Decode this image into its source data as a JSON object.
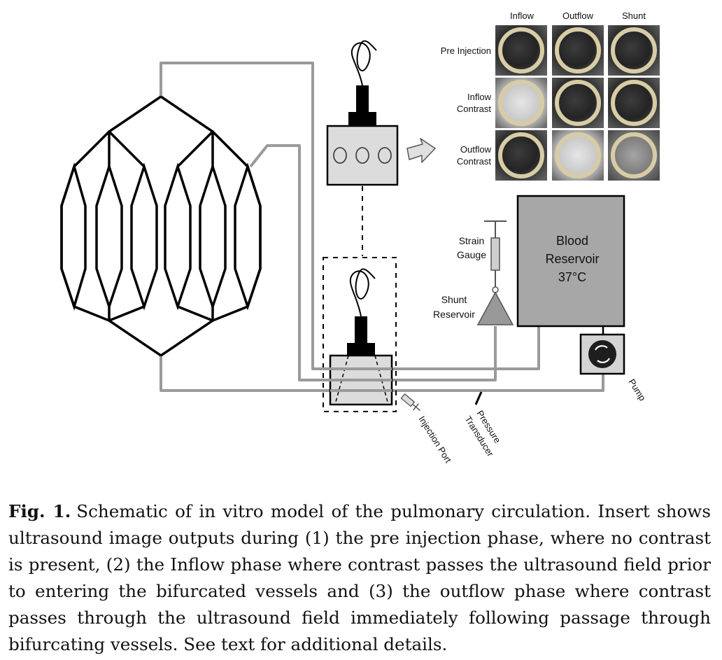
{
  "grid": {
    "columns": [
      "Inflow",
      "Outflow",
      "Shunt"
    ],
    "rows": [
      {
        "label_lines": [
          "Pre Injection"
        ],
        "cells": [
          "dark",
          "dark",
          "dark"
        ]
      },
      {
        "label_lines": [
          "Inflow",
          "Contrast"
        ],
        "cells": [
          "bright",
          "dark",
          "dark"
        ]
      },
      {
        "label_lines": [
          "Outflow",
          "Contrast"
        ],
        "cells": [
          "dark",
          "bright",
          "mid"
        ]
      }
    ]
  },
  "labels": {
    "strain_gauge": [
      "Strain",
      "Gauge"
    ],
    "shunt_reservoir": [
      "Shunt",
      "Reservoir"
    ],
    "blood_reservoir": [
      "Blood",
      "Reservoir",
      "37°C"
    ],
    "pump": "Pump",
    "pressure_transducer": [
      "Pressure",
      "Transducer"
    ],
    "injection_port": "Injection Port"
  },
  "colors": {
    "tubing": "#9a9a9a",
    "box_fill": "#dcdcdc",
    "reservoir_fill": "#a7a7a7",
    "ring": "#d8cca6"
  },
  "caption": {
    "figure_label": "Fig. 1.",
    "text": "Schematic of in vitro model of the pulmonary circulation. Insert shows ultrasound image outputs during (1) the pre injection phase, where no contrast is present, (2) the Inflow phase where contrast passes the ultrasound field prior to entering the bifurcated vessels and (3) the outflow phase where contrast passes through the ultrasound field immediately following passage through bifurcating vessels. See text for additional details."
  }
}
